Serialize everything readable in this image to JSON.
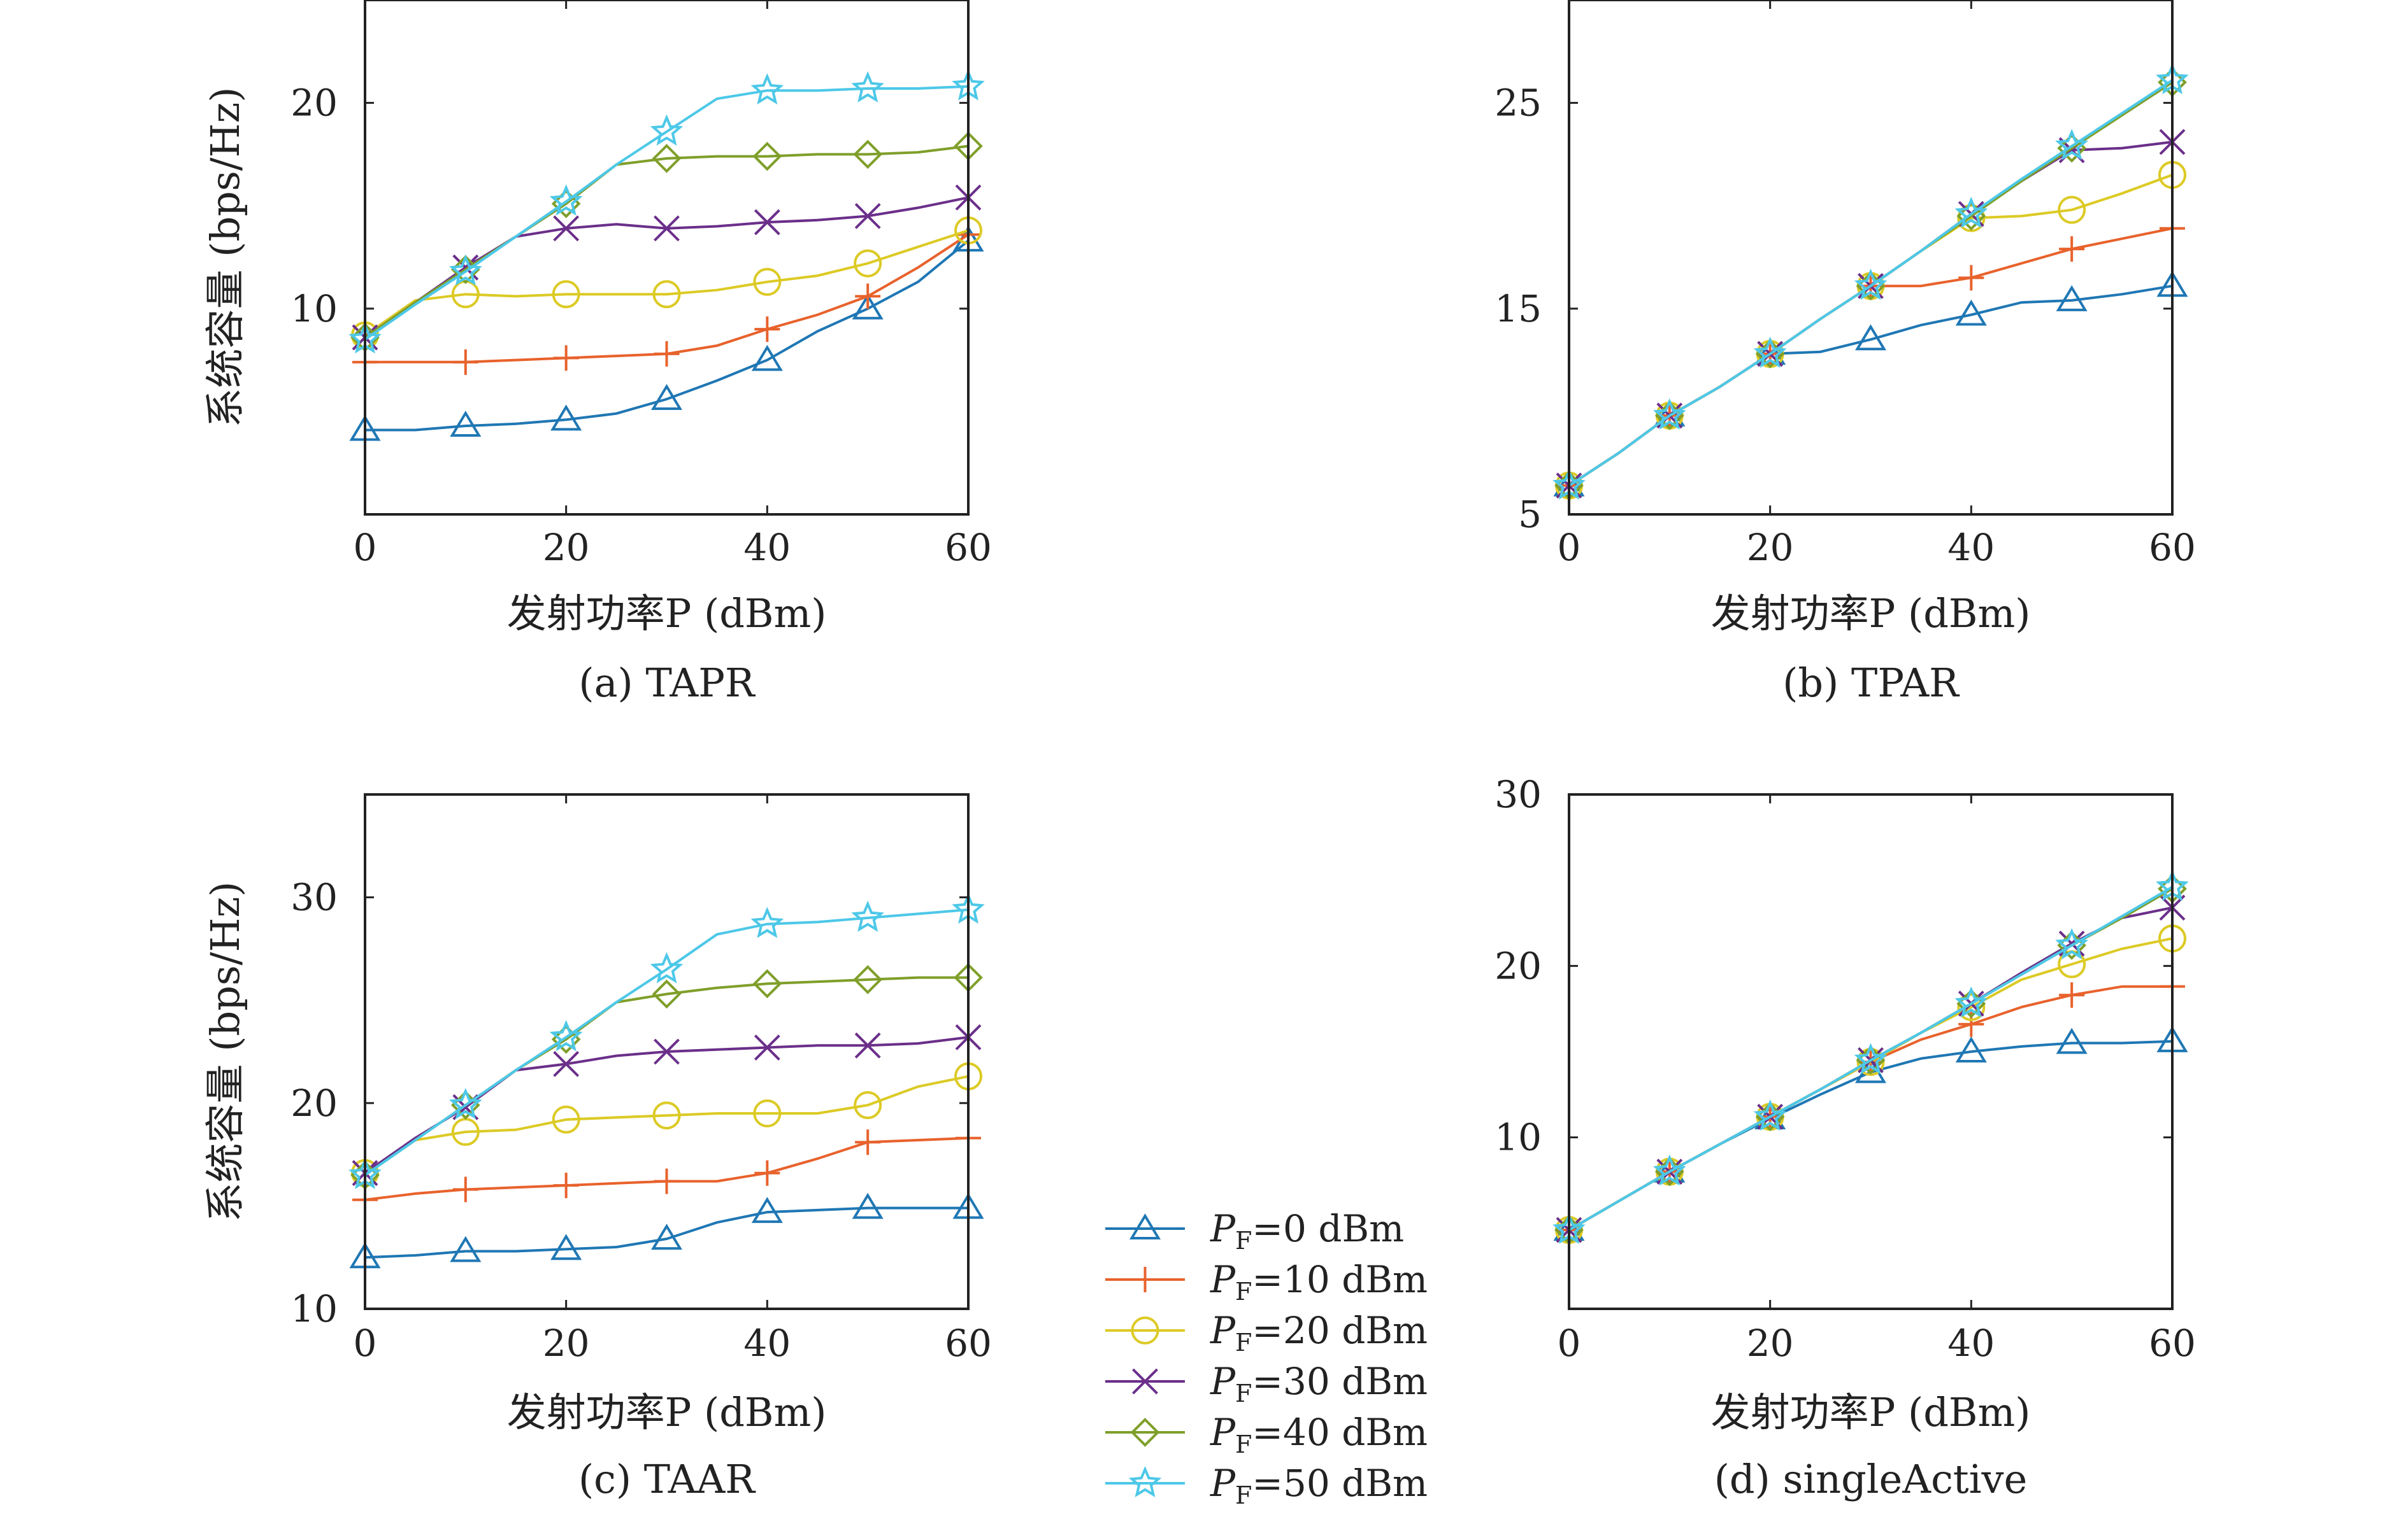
{
  "chart_data": [
    {
      "type": "line",
      "panel": "a",
      "caption": "(a) TAPR",
      "xlabel": "发射功率P (dBm)",
      "ylabel": "系统容量 (bps/Hz)",
      "xlim": [
        0,
        60
      ],
      "ylim": [
        0,
        25
      ],
      "xticks": [
        0,
        20,
        40,
        60
      ],
      "yticks": [
        10,
        20
      ],
      "series": [
        {
          "name": "P_F=0 dBm",
          "x": [
            0,
            5,
            10,
            15,
            20,
            25,
            30,
            35,
            40,
            45,
            50,
            55,
            60
          ],
          "y": [
            4.1,
            4.1,
            4.3,
            4.4,
            4.6,
            4.9,
            5.6,
            6.5,
            7.5,
            8.9,
            10.0,
            11.3,
            13.3
          ]
        },
        {
          "name": "P_F=10 dBm",
          "x": [
            0,
            5,
            10,
            15,
            20,
            25,
            30,
            35,
            40,
            45,
            50,
            55,
            60
          ],
          "y": [
            7.4,
            7.4,
            7.4,
            7.5,
            7.6,
            7.7,
            7.8,
            8.2,
            9.0,
            9.7,
            10.6,
            12.0,
            13.6
          ]
        },
        {
          "name": "P_F=20 dBm",
          "x": [
            0,
            5,
            10,
            15,
            20,
            25,
            30,
            35,
            40,
            45,
            50,
            55,
            60
          ],
          "y": [
            8.7,
            10.4,
            10.7,
            10.6,
            10.7,
            10.7,
            10.7,
            10.9,
            11.3,
            11.6,
            12.2,
            13.0,
            13.8
          ]
        },
        {
          "name": "P_F=30 dBm",
          "x": [
            0,
            5,
            10,
            15,
            20,
            25,
            30,
            35,
            40,
            45,
            50,
            55,
            60
          ],
          "y": [
            8.6,
            10.3,
            12.0,
            13.5,
            13.9,
            14.1,
            13.9,
            14.0,
            14.2,
            14.3,
            14.5,
            14.9,
            15.4
          ]
        },
        {
          "name": "P_F=40 dBm",
          "x": [
            0,
            5,
            10,
            15,
            20,
            25,
            30,
            35,
            40,
            45,
            50,
            55,
            60
          ],
          "y": [
            8.6,
            10.3,
            11.9,
            13.5,
            15.1,
            17.0,
            17.3,
            17.4,
            17.4,
            17.5,
            17.5,
            17.6,
            17.9
          ]
        },
        {
          "name": "P_F=50 dBm",
          "x": [
            0,
            5,
            10,
            15,
            20,
            25,
            30,
            35,
            40,
            45,
            50,
            55,
            60
          ],
          "y": [
            8.5,
            10.2,
            11.8,
            13.5,
            15.2,
            17.0,
            18.6,
            20.2,
            20.6,
            20.6,
            20.7,
            20.7,
            20.8
          ]
        }
      ]
    },
    {
      "type": "line",
      "panel": "b",
      "caption": "(b) TPAR",
      "xlabel": "发射功率P (dBm)",
      "xlim": [
        0,
        60
      ],
      "ylim": [
        5,
        30
      ],
      "xticks": [
        0,
        20,
        40,
        60
      ],
      "yticks": [
        5,
        15,
        25
      ],
      "series": [
        {
          "name": "P_F=0 dBm",
          "x": [
            0,
            5,
            10,
            15,
            20,
            25,
            30,
            35,
            40,
            45,
            50,
            55,
            60
          ],
          "y": [
            6.4,
            8.0,
            9.8,
            11.2,
            12.8,
            12.9,
            13.5,
            14.2,
            14.7,
            15.3,
            15.4,
            15.7,
            16.1
          ]
        },
        {
          "name": "P_F=10 dBm",
          "x": [
            0,
            5,
            10,
            15,
            20,
            25,
            30,
            35,
            40,
            45,
            50,
            55,
            60
          ],
          "y": [
            6.4,
            8.0,
            9.8,
            11.2,
            12.8,
            14.5,
            16.1,
            16.1,
            16.5,
            17.2,
            17.9,
            18.4,
            18.9
          ]
        },
        {
          "name": "P_F=20 dBm",
          "x": [
            0,
            5,
            10,
            15,
            20,
            25,
            30,
            35,
            40,
            45,
            50,
            55,
            60
          ],
          "y": [
            6.4,
            8.0,
            9.8,
            11.2,
            12.8,
            14.5,
            16.1,
            17.8,
            19.4,
            19.5,
            19.8,
            20.6,
            21.5
          ]
        },
        {
          "name": "P_F=30 dBm",
          "x": [
            0,
            5,
            10,
            15,
            20,
            25,
            30,
            35,
            40,
            45,
            50,
            55,
            60
          ],
          "y": [
            6.4,
            8.0,
            9.8,
            11.2,
            12.8,
            14.5,
            16.1,
            17.8,
            19.6,
            21.2,
            22.7,
            22.8,
            23.1
          ]
        },
        {
          "name": "P_F=40 dBm",
          "x": [
            0,
            5,
            10,
            15,
            20,
            25,
            30,
            35,
            40,
            45,
            50,
            55,
            60
          ],
          "y": [
            6.4,
            8.0,
            9.8,
            11.2,
            12.8,
            14.5,
            16.1,
            17.8,
            19.5,
            21.2,
            22.8,
            24.4,
            26.0
          ]
        },
        {
          "name": "P_F=50 dBm",
          "x": [
            0,
            5,
            10,
            15,
            20,
            25,
            30,
            35,
            40,
            45,
            50,
            55,
            60
          ],
          "y": [
            6.4,
            8.0,
            9.8,
            11.2,
            12.8,
            14.5,
            16.1,
            17.8,
            19.6,
            21.3,
            22.9,
            24.5,
            26.1
          ]
        }
      ]
    },
    {
      "type": "line",
      "panel": "c",
      "caption": "(c) TAAR",
      "xlabel": "发射功率P (dBm)",
      "ylabel": "系统容量 (bps/Hz)",
      "xlim": [
        0,
        60
      ],
      "ylim": [
        10,
        35
      ],
      "xticks": [
        0,
        20,
        40,
        60
      ],
      "yticks": [
        10,
        20,
        30
      ],
      "series": [
        {
          "name": "P_F=0 dBm",
          "x": [
            0,
            5,
            10,
            15,
            20,
            25,
            30,
            35,
            40,
            45,
            50,
            55,
            60
          ],
          "y": [
            12.5,
            12.6,
            12.8,
            12.8,
            12.9,
            13.0,
            13.4,
            14.2,
            14.7,
            14.8,
            14.9,
            14.9,
            14.9
          ]
        },
        {
          "name": "P_F=10 dBm",
          "x": [
            0,
            5,
            10,
            15,
            20,
            25,
            30,
            35,
            40,
            45,
            50,
            55,
            60
          ],
          "y": [
            15.3,
            15.6,
            15.8,
            15.9,
            16.0,
            16.1,
            16.2,
            16.2,
            16.6,
            17.3,
            18.1,
            18.2,
            18.3
          ]
        },
        {
          "name": "P_F=20 dBm",
          "x": [
            0,
            5,
            10,
            15,
            20,
            25,
            30,
            35,
            40,
            45,
            50,
            55,
            60
          ],
          "y": [
            16.6,
            18.2,
            18.6,
            18.7,
            19.2,
            19.3,
            19.4,
            19.5,
            19.5,
            19.5,
            19.9,
            20.8,
            21.3
          ]
        },
        {
          "name": "P_F=30 dBm",
          "x": [
            0,
            5,
            10,
            15,
            20,
            25,
            30,
            35,
            40,
            45,
            50,
            55,
            60
          ],
          "y": [
            16.6,
            18.3,
            19.8,
            21.6,
            21.9,
            22.3,
            22.5,
            22.6,
            22.7,
            22.8,
            22.8,
            22.9,
            23.2
          ]
        },
        {
          "name": "P_F=40 dBm",
          "x": [
            0,
            5,
            10,
            15,
            20,
            25,
            30,
            35,
            40,
            45,
            50,
            55,
            60
          ],
          "y": [
            16.5,
            18.2,
            19.9,
            21.6,
            23.1,
            24.9,
            25.3,
            25.6,
            25.8,
            25.9,
            26.0,
            26.1,
            26.1
          ]
        },
        {
          "name": "P_F=50 dBm",
          "x": [
            0,
            5,
            10,
            15,
            20,
            25,
            30,
            35,
            40,
            45,
            50,
            55,
            60
          ],
          "y": [
            16.5,
            18.2,
            19.9,
            21.6,
            23.2,
            24.9,
            26.5,
            28.2,
            28.7,
            28.8,
            29.0,
            29.2,
            29.4
          ]
        }
      ]
    },
    {
      "type": "line",
      "panel": "d",
      "caption": "(d) singleActive",
      "xlabel": "发射功率P (dBm)",
      "xlim": [
        0,
        60
      ],
      "ylim": [
        0,
        30
      ],
      "xticks": [
        0,
        20,
        40,
        60
      ],
      "yticks": [
        10,
        20,
        30
      ],
      "series": [
        {
          "name": "P_F=0 dBm",
          "x": [
            0,
            5,
            10,
            15,
            20,
            25,
            30,
            35,
            40,
            45,
            50,
            55,
            60
          ],
          "y": [
            4.6,
            6.3,
            8.0,
            9.6,
            11.1,
            12.5,
            13.8,
            14.6,
            15.0,
            15.3,
            15.5,
            15.5,
            15.6
          ]
        },
        {
          "name": "P_F=10 dBm",
          "x": [
            0,
            5,
            10,
            15,
            20,
            25,
            30,
            35,
            40,
            45,
            50,
            55,
            60
          ],
          "y": [
            4.6,
            6.3,
            8.0,
            9.6,
            11.2,
            12.8,
            14.4,
            15.7,
            16.6,
            17.6,
            18.3,
            18.8,
            18.8
          ]
        },
        {
          "name": "P_F=20 dBm",
          "x": [
            0,
            5,
            10,
            15,
            20,
            25,
            30,
            35,
            40,
            45,
            50,
            55,
            60
          ],
          "y": [
            4.6,
            6.3,
            8.0,
            9.6,
            11.2,
            12.8,
            14.4,
            16.1,
            17.6,
            19.2,
            20.1,
            21.0,
            21.6
          ]
        },
        {
          "name": "P_F=30 dBm",
          "x": [
            0,
            5,
            10,
            15,
            20,
            25,
            30,
            35,
            40,
            45,
            50,
            55,
            60
          ],
          "y": [
            4.6,
            6.3,
            8.0,
            9.6,
            11.2,
            12.8,
            14.5,
            16.1,
            17.8,
            19.6,
            21.3,
            22.8,
            23.4
          ]
        },
        {
          "name": "P_F=40 dBm",
          "x": [
            0,
            5,
            10,
            15,
            20,
            25,
            30,
            35,
            40,
            45,
            50,
            55,
            60
          ],
          "y": [
            4.6,
            6.3,
            8.0,
            9.6,
            11.2,
            12.8,
            14.5,
            16.1,
            17.8,
            19.5,
            21.2,
            22.8,
            24.5
          ]
        },
        {
          "name": "P_F=50 dBm",
          "x": [
            0,
            5,
            10,
            15,
            20,
            25,
            30,
            35,
            40,
            45,
            50,
            55,
            60
          ],
          "y": [
            4.6,
            6.3,
            8.0,
            9.6,
            11.2,
            12.8,
            14.5,
            16.1,
            17.8,
            19.5,
            21.2,
            22.9,
            24.6
          ]
        }
      ]
    }
  ],
  "legend": {
    "placement": "bottom-center",
    "entries": [
      {
        "label": "=0 dBm",
        "color": "#1f77b4",
        "marker": "triangle"
      },
      {
        "label": "=10 dBm",
        "color": "#e8622c",
        "marker": "plus"
      },
      {
        "label": "=20 dBm",
        "color": "#dcca25",
        "marker": "circle"
      },
      {
        "label": "=30 dBm",
        "color": "#6b2f8a",
        "marker": "x"
      },
      {
        "label": "=40 dBm",
        "color": "#7f9f2a",
        "marker": "diamond"
      },
      {
        "label": "=50 dBm",
        "color": "#4dc8e8",
        "marker": "star"
      }
    ],
    "symbol": "P",
    "subscript": "F"
  }
}
